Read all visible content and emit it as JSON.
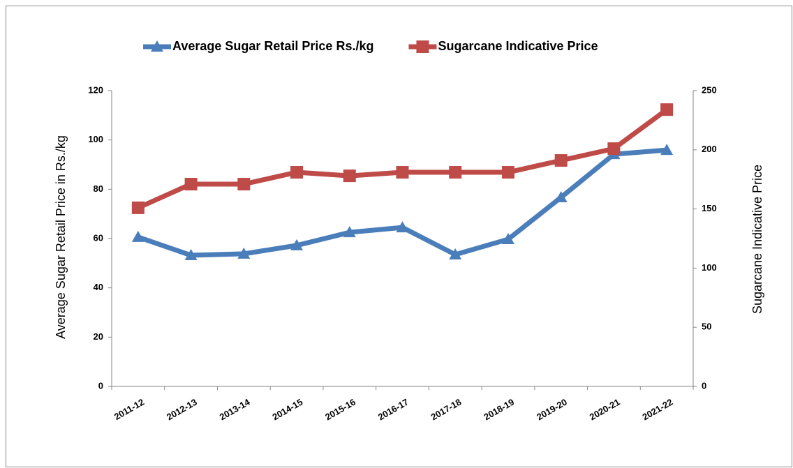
{
  "chart_data": {
    "type": "line",
    "y_label": "Average Sugar Retail Price in Rs./kg",
    "y2_label": "Sugarcane Indicative Price",
    "categories": [
      "2011-12",
      "2012-13",
      "2013-14",
      "2014-15",
      "2015-16",
      "2016-17",
      "2017-18",
      "2018-19",
      "2019-20",
      "2020-21",
      "2021-22"
    ],
    "series": [
      {
        "name": "Average Sugar Retail Price Rs./kg",
        "color": "#4a7ebb",
        "marker": "triangle",
        "values": [
          60.6,
          53.2,
          53.8,
          57.2,
          62.5,
          64.5,
          53.5,
          59.7,
          76.7,
          94.2,
          95.9
        ]
      },
      {
        "name": "Sugarcane Indicative Price",
        "color": "#be4b48",
        "marker": "square",
        "axis": "y2",
        "values": [
          151,
          171,
          171,
          181,
          178,
          181,
          181,
          181,
          191,
          201,
          234
        ]
      }
    ],
    "ylim": [
      0,
      120
    ],
    "yticks": [
      0,
      20,
      40,
      60,
      80,
      100,
      120
    ],
    "y2lim": [
      0,
      250
    ],
    "y2ticks": [
      0,
      50,
      100,
      150,
      200,
      250
    ],
    "grid": false,
    "legend": "top"
  }
}
